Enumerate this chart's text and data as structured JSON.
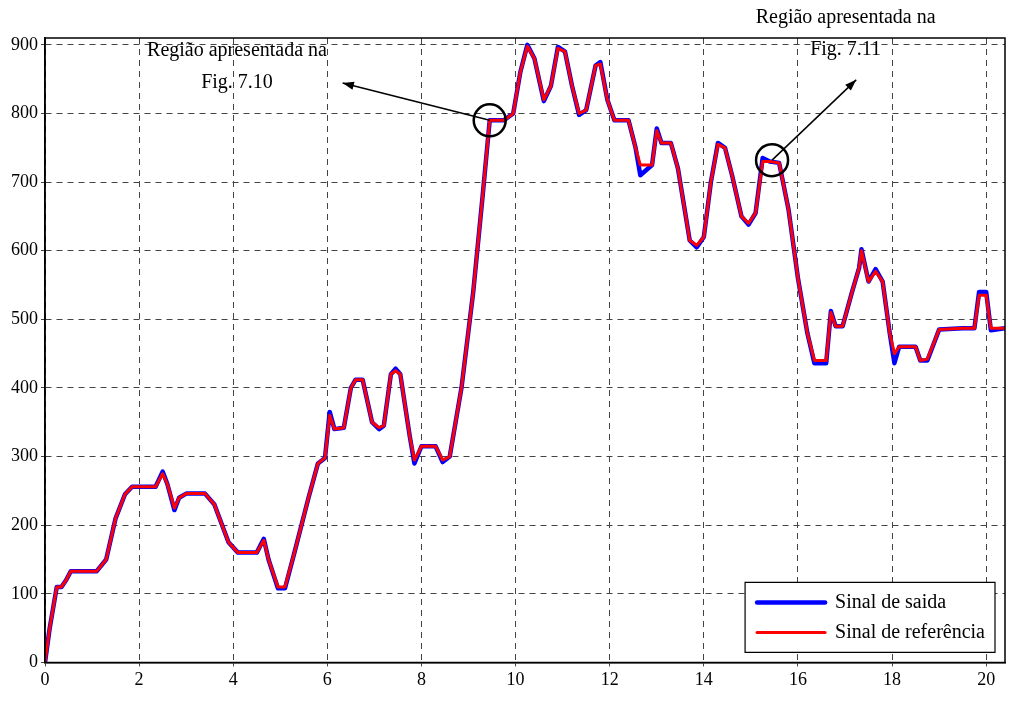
{
  "chart_data": {
    "type": "line",
    "x": [
      0,
      0.1,
      0.25,
      0.35,
      0.45,
      0.55,
      1.1,
      1.3,
      1.5,
      1.7,
      1.85,
      2.35,
      2.5,
      2.6,
      2.75,
      2.85,
      3.0,
      3.4,
      3.6,
      3.9,
      4.1,
      4.5,
      4.65,
      4.75,
      4.95,
      5.1,
      5.3,
      5.6,
      5.8,
      5.95,
      6.05,
      6.15,
      6.35,
      6.5,
      6.6,
      6.75,
      6.95,
      7.1,
      7.2,
      7.35,
      7.45,
      7.55,
      7.75,
      7.85,
      8.0,
      8.3,
      8.45,
      8.6,
      8.85,
      9.1,
      9.3,
      9.45,
      9.75,
      9.95,
      10.1,
      10.25,
      10.4,
      10.6,
      10.75,
      10.9,
      11.05,
      11.2,
      11.35,
      11.5,
      11.7,
      11.8,
      11.95,
      12.1,
      12.4,
      12.55,
      12.65,
      12.9,
      13.0,
      13.1,
      13.3,
      13.45,
      13.7,
      13.85,
      14.0,
      14.15,
      14.3,
      14.45,
      14.6,
      14.8,
      14.95,
      15.1,
      15.25,
      15.4,
      15.6,
      15.8,
      16.0,
      16.2,
      16.35,
      16.6,
      16.7,
      16.8,
      16.95,
      17.15,
      17.3,
      17.35,
      17.5,
      17.65,
      17.8,
      17.95,
      18.05,
      18.15,
      18.5,
      18.6,
      18.75,
      19.0,
      19.5,
      19.75,
      19.85,
      20.0,
      20.1,
      20.4
    ],
    "series": [
      {
        "name": "Sinal de saida",
        "color": "#0000ff",
        "values": [
          0,
          50,
          110,
          110,
          120,
          133,
          133,
          150,
          210,
          245,
          256,
          256,
          278,
          260,
          222,
          240,
          246,
          246,
          230,
          175,
          160,
          160,
          180,
          150,
          108,
          108,
          160,
          240,
          290,
          298,
          365,
          340,
          342,
          400,
          412,
          412,
          350,
          340,
          345,
          420,
          428,
          420,
          330,
          290,
          315,
          315,
          292,
          300,
          400,
          540,
          680,
          790,
          790,
          800,
          860,
          900,
          880,
          818,
          840,
          897,
          890,
          840,
          798,
          805,
          870,
          875,
          820,
          790,
          790,
          750,
          710,
          725,
          778,
          757,
          757,
          720,
          615,
          605,
          620,
          700,
          757,
          750,
          710,
          650,
          638,
          655,
          735,
          730,
          728,
          660,
          560,
          480,
          436,
          436,
          512,
          490,
          490,
          540,
          575,
          602,
          555,
          573,
          555,
          480,
          436,
          460,
          460,
          440,
          440,
          485,
          487,
          487,
          540,
          540,
          484,
          487
        ]
      },
      {
        "name": "Sinal de referência",
        "color": "#ff0000",
        "values": [
          0,
          50,
          110,
          110,
          120,
          133,
          133,
          150,
          210,
          245,
          256,
          256,
          275,
          260,
          225,
          240,
          246,
          246,
          230,
          175,
          160,
          160,
          178,
          150,
          110,
          110,
          160,
          240,
          290,
          298,
          360,
          340,
          342,
          400,
          412,
          412,
          350,
          342,
          345,
          420,
          425,
          420,
          330,
          295,
          315,
          315,
          295,
          300,
          400,
          540,
          680,
          790,
          790,
          800,
          860,
          898,
          880,
          820,
          840,
          895,
          890,
          840,
          800,
          805,
          870,
          872,
          820,
          790,
          790,
          750,
          725,
          725,
          775,
          757,
          757,
          720,
          615,
          608,
          620,
          700,
          755,
          750,
          710,
          650,
          640,
          655,
          730,
          730,
          728,
          660,
          560,
          480,
          440,
          440,
          510,
          490,
          490,
          540,
          575,
          600,
          555,
          570,
          555,
          480,
          450,
          460,
          460,
          440,
          442,
          485,
          487,
          487,
          535,
          535,
          487,
          487
        ]
      }
    ],
    "xlim": [
      0,
      20.4
    ],
    "xticks": [
      0,
      2,
      4,
      6,
      8,
      10,
      12,
      14,
      16,
      18,
      20
    ],
    "ylim": [
      0,
      910
    ],
    "yticks": [
      0,
      100,
      200,
      300,
      400,
      500,
      600,
      700,
      800,
      900
    ],
    "grid": true,
    "legend": "bottom right",
    "annotations": [
      {
        "text": "Região apresentada na\nFig. 7.10",
        "x": 9.45,
        "y": 790
      },
      {
        "text": "Região apresentada na\nFig. 7.11",
        "x": 15.45,
        "y": 732
      }
    ]
  }
}
